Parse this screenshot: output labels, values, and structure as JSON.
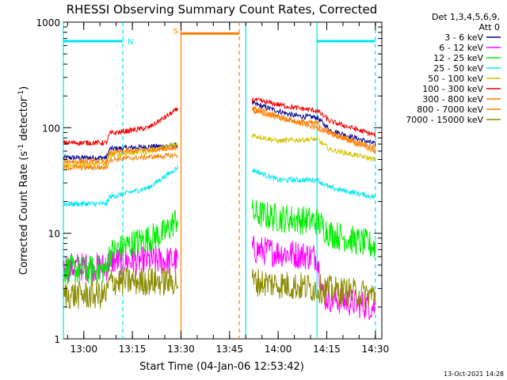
{
  "chart_data": {
    "type": "line",
    "title": "RHESSI Observing Summary Count Rates, Corrected",
    "xlabel": "Start Time (04-Jan-06 12:53:42)",
    "ylabel_main": "Corrected Count Rate (s",
    "ylabel_sup1": "-1",
    "ylabel_mid": " detector",
    "ylabel_sup2": "-1",
    "ylabel_end": ")",
    "yscale": "log",
    "ylim": [
      1,
      1000
    ],
    "xlim": [
      "12:53:42",
      "14:32:00"
    ],
    "x_ticks": [
      "13:00",
      "13:15",
      "13:30",
      "13:45",
      "14:00",
      "14:15",
      "14:30"
    ],
    "y_ticks": [
      "1",
      "10",
      "100",
      "1000"
    ],
    "legend_header": [
      "Det 1,3,4,5,6,9,",
      "Att 0"
    ],
    "legend_position": "right",
    "series": [
      {
        "name": "3 - 6 keV",
        "color": "#000090",
        "values": [
          [
            "12:53:42",
            52
          ],
          [
            "13:07",
            52
          ],
          [
            "13:08",
            63
          ],
          [
            "13:20",
            66
          ],
          [
            "13:29",
            68
          ],
          [
            "13:52",
            170
          ],
          [
            "14:05",
            130
          ],
          [
            "14:12",
            125
          ],
          [
            "14:16",
            95
          ],
          [
            "14:30",
            70
          ]
        ]
      },
      {
        "name": "6 - 12 keV",
        "color": "#ff00ff",
        "values": [
          [
            "12:53:42",
            4.8
          ],
          [
            "13:07",
            4.8
          ],
          [
            "13:08",
            5.5
          ],
          [
            "13:29",
            5.5
          ],
          [
            "13:52",
            7.0
          ],
          [
            "14:12",
            6.0
          ],
          [
            "14:14",
            2.5
          ],
          [
            "14:30",
            2.0
          ]
        ]
      },
      {
        "name": "12 - 25 keV",
        "color": "#00ee00",
        "values": [
          [
            "12:53:42",
            4.5
          ],
          [
            "13:07",
            4.5
          ],
          [
            "13:08",
            6.5
          ],
          [
            "13:15",
            8.0
          ],
          [
            "13:25",
            10
          ],
          [
            "13:29",
            14
          ],
          [
            "13:52",
            15.5
          ],
          [
            "14:00",
            14
          ],
          [
            "14:12",
            13
          ],
          [
            "14:16",
            10
          ],
          [
            "14:30",
            7.5
          ]
        ]
      },
      {
        "name": "25 - 50 keV",
        "color": "#00e5ee",
        "values": [
          [
            "12:53:42",
            19
          ],
          [
            "13:07",
            19
          ],
          [
            "13:08",
            22
          ],
          [
            "13:20",
            27
          ],
          [
            "13:29",
            42
          ],
          [
            "13:52",
            40
          ],
          [
            "14:00",
            32
          ],
          [
            "14:12",
            32
          ],
          [
            "14:16",
            27
          ],
          [
            "14:30",
            22
          ]
        ]
      },
      {
        "name": "50 - 100 keV",
        "color": "#d4c400",
        "values": [
          [
            "12:53:42",
            45
          ],
          [
            "13:07",
            45
          ],
          [
            "13:08",
            55
          ],
          [
            "13:20",
            60
          ],
          [
            "13:29",
            70
          ],
          [
            "13:52",
            85
          ],
          [
            "14:00",
            75
          ],
          [
            "14:12",
            78
          ],
          [
            "14:16",
            62
          ],
          [
            "14:30",
            50
          ]
        ]
      },
      {
        "name": "100 - 300 keV",
        "color": "#ee0000",
        "values": [
          [
            "12:53:42",
            72
          ],
          [
            "13:07",
            72
          ],
          [
            "13:08",
            88
          ],
          [
            "13:20",
            100
          ],
          [
            "13:29",
            150
          ],
          [
            "13:52",
            185
          ],
          [
            "14:05",
            155
          ],
          [
            "14:12",
            145
          ],
          [
            "14:16",
            115
          ],
          [
            "14:30",
            85
          ]
        ]
      },
      {
        "name": "300 - 800 keV",
        "color": "#ff7f00",
        "values": [
          [
            "12:53:42",
            48
          ],
          [
            "13:07",
            48
          ],
          [
            "13:08",
            58
          ],
          [
            "13:20",
            62
          ],
          [
            "13:29",
            65
          ],
          [
            "13:52",
            155
          ],
          [
            "14:05",
            115
          ],
          [
            "14:12",
            110
          ],
          [
            "14:16",
            88
          ],
          [
            "14:30",
            65
          ]
        ]
      },
      {
        "name": "800 - 7000 keV",
        "color": "#ff7f00",
        "values": [
          [
            "12:53:42",
            42
          ],
          [
            "13:07",
            42
          ],
          [
            "13:08",
            50
          ],
          [
            "13:29",
            55
          ],
          [
            "13:52",
            145
          ],
          [
            "14:12",
            100
          ],
          [
            "14:30",
            60
          ]
        ]
      },
      {
        "name": "7000 - 15000 keV",
        "color": "#8b8b00",
        "values": [
          [
            "12:53:42",
            2.6
          ],
          [
            "13:07",
            2.6
          ],
          [
            "13:08",
            3.5
          ],
          [
            "13:29",
            3.5
          ],
          [
            "13:52",
            3.5
          ],
          [
            "14:12",
            3.0
          ],
          [
            "14:30",
            2.6
          ]
        ]
      }
    ],
    "bars": [
      {
        "label": "N",
        "color": "#00e5ee",
        "start": "12:53:42",
        "end": "13:12",
        "level": 660
      },
      {
        "label": "S",
        "color": "#ff7f00",
        "start": "13:30",
        "end": "13:48",
        "level": 780
      },
      {
        "label": "",
        "color": "#00e5ee",
        "start": "14:12",
        "end": "14:30",
        "level": 660
      }
    ],
    "vlines": [
      {
        "time": "12:53:42",
        "color": "#00e5ee",
        "style": "solid"
      },
      {
        "time": "13:12",
        "color": "#00e5ee",
        "style": "dashed"
      },
      {
        "time": "13:30",
        "color": "#ff7f00",
        "style": "solid"
      },
      {
        "time": "13:48",
        "color": "#ff7f00",
        "style": "dashed"
      },
      {
        "time": "13:50",
        "color": "#00e5ee",
        "style": "solid"
      },
      {
        "time": "14:12",
        "color": "#00e5ee",
        "style": "solid"
      },
      {
        "time": "14:30",
        "color": "#00e5ee",
        "style": "dashed"
      }
    ],
    "gaps": [
      [
        "13:29",
        "13:52"
      ]
    ],
    "footer_timestamp": "13-Oct-2021 14:28"
  }
}
